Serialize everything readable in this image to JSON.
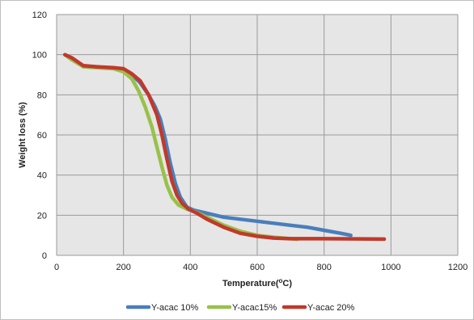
{
  "chart_data": {
    "type": "line",
    "title": "",
    "xlabel": "Temperature(°C)",
    "xlabel_parts": {
      "pre": "Temperature(",
      "sup": "o",
      "post": "C)"
    },
    "ylabel": "Weight loss (%)",
    "xlim": [
      0,
      1200
    ],
    "ylim": [
      0,
      120
    ],
    "xticks": [
      0,
      200,
      400,
      600,
      800,
      1000,
      1200
    ],
    "yticks": [
      0,
      20,
      40,
      60,
      80,
      100,
      120
    ],
    "grid": true,
    "legend_position": "bottom",
    "series": [
      {
        "name": "Y-acac 10%",
        "color": "#4a7ebb",
        "points": [
          [
            25,
            100
          ],
          [
            45,
            98
          ],
          [
            80,
            94
          ],
          [
            120,
            93.7
          ],
          [
            170,
            93.3
          ],
          [
            200,
            92.5
          ],
          [
            225,
            90
          ],
          [
            250,
            86
          ],
          [
            275,
            80
          ],
          [
            295,
            74
          ],
          [
            310,
            68
          ],
          [
            325,
            58
          ],
          [
            340,
            46
          ],
          [
            355,
            36
          ],
          [
            370,
            29
          ],
          [
            390,
            24
          ],
          [
            410,
            22.5
          ],
          [
            450,
            21
          ],
          [
            500,
            19
          ],
          [
            550,
            18
          ],
          [
            600,
            17
          ],
          [
            650,
            16
          ],
          [
            700,
            15
          ],
          [
            750,
            14
          ],
          [
            800,
            12.5
          ],
          [
            850,
            11
          ],
          [
            880,
            10
          ]
        ]
      },
      {
        "name": "Y-acac15%",
        "color": "#98c14a",
        "points": [
          [
            25,
            100
          ],
          [
            45,
            97.5
          ],
          [
            80,
            94
          ],
          [
            120,
            93.5
          ],
          [
            170,
            93
          ],
          [
            200,
            91.5
          ],
          [
            225,
            88
          ],
          [
            245,
            82
          ],
          [
            265,
            74
          ],
          [
            285,
            64
          ],
          [
            300,
            54
          ],
          [
            315,
            44
          ],
          [
            330,
            35
          ],
          [
            345,
            29
          ],
          [
            365,
            25
          ],
          [
            390,
            23
          ],
          [
            410,
            22
          ],
          [
            450,
            19
          ],
          [
            500,
            15
          ],
          [
            550,
            12
          ],
          [
            600,
            10
          ],
          [
            650,
            9
          ],
          [
            700,
            8.3
          ],
          [
            720,
            8
          ]
        ]
      },
      {
        "name": "Y-acac 20%",
        "color": "#c0392b",
        "points": [
          [
            25,
            100
          ],
          [
            45,
            98.5
          ],
          [
            80,
            94.5
          ],
          [
            120,
            94
          ],
          [
            170,
            93.5
          ],
          [
            200,
            93
          ],
          [
            225,
            90.5
          ],
          [
            250,
            87
          ],
          [
            275,
            80
          ],
          [
            300,
            70
          ],
          [
            315,
            60
          ],
          [
            330,
            48
          ],
          [
            345,
            37
          ],
          [
            360,
            30
          ],
          [
            375,
            26
          ],
          [
            395,
            23
          ],
          [
            420,
            21
          ],
          [
            450,
            18
          ],
          [
            500,
            14
          ],
          [
            550,
            11
          ],
          [
            600,
            9.5
          ],
          [
            650,
            8.6
          ],
          [
            700,
            8.3
          ],
          [
            800,
            8.3
          ],
          [
            900,
            8.2
          ],
          [
            980,
            8.1
          ]
        ]
      }
    ]
  }
}
